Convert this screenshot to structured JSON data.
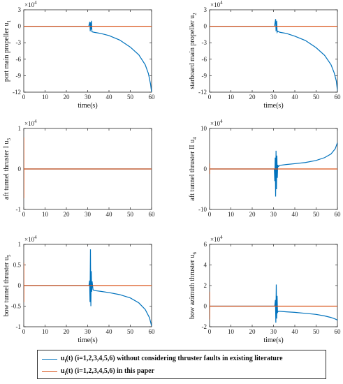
{
  "colors": {
    "literature": "#0072BD",
    "this_paper": "#D95319",
    "axis": "#262626"
  },
  "legend": {
    "items": [
      {
        "label_parts": [
          "u",
          "i",
          "(t) (i=1,2,3,4,5,6) without considering thruster faults in existing literature"
        ],
        "color": "#0072BD"
      },
      {
        "label_parts": [
          "u",
          "i",
          "(t) (i=1,2,3,4,5,6) in this paper"
        ],
        "color": "#D95319"
      }
    ]
  },
  "chart_data": [
    {
      "type": "line",
      "ylabel": "port main propeller u",
      "ylabel_sub": "1",
      "xlabel": "time(s)",
      "exponent_base": "×10",
      "exponent_power": "4",
      "xlim": [
        0,
        60
      ],
      "ylim": [
        -12,
        3
      ],
      "xticks": [
        "0",
        "10",
        "20",
        "30",
        "40",
        "50",
        "60"
      ],
      "yticks": [
        "-12",
        "-9",
        "-6",
        "-3",
        "0",
        "3"
      ],
      "series": [
        {
          "color_key": "literature",
          "x": [
            0,
            30.5,
            31,
            31.2,
            31.4,
            31.6,
            31.8,
            32,
            33,
            36,
            40,
            45,
            50,
            54,
            57,
            58.5,
            59.5,
            60
          ],
          "y": [
            0,
            0,
            0.8,
            -0.9,
            0.7,
            -0.6,
            1,
            -1,
            -1.1,
            -1.3,
            -1.7,
            -2.5,
            -3.8,
            -5.2,
            -7,
            -8.6,
            -10.5,
            -12
          ]
        },
        {
          "color_key": "this_paper",
          "x": [
            0,
            60
          ],
          "y": [
            0,
            0
          ]
        }
      ]
    },
    {
      "type": "line",
      "ylabel": "starboard main propeller u",
      "ylabel_sub": "2",
      "xlabel": "time(s)",
      "exponent_base": "×10",
      "exponent_power": "4",
      "xlim": [
        0,
        60
      ],
      "ylim": [
        -12,
        3
      ],
      "xticks": [
        "0",
        "10",
        "20",
        "30",
        "40",
        "50",
        "60"
      ],
      "yticks": [
        "-12",
        "-9",
        "-6",
        "-3",
        "0",
        "3"
      ],
      "series": [
        {
          "color_key": "literature",
          "x": [
            0,
            30.5,
            31,
            31.2,
            31.5,
            31.7,
            32,
            33,
            36,
            40,
            45,
            50,
            54,
            57,
            58.5,
            59.5,
            60
          ],
          "y": [
            0,
            0,
            1.3,
            -0.9,
            1,
            -1.1,
            -0.9,
            -1.1,
            -1.3,
            -1.8,
            -2.6,
            -3.9,
            -5.3,
            -7,
            -8.5,
            -10,
            -11.7
          ]
        },
        {
          "color_key": "this_paper",
          "x": [
            0,
            60
          ],
          "y": [
            0,
            0
          ]
        }
      ]
    },
    {
      "type": "line",
      "ylabel": "aft tunnel thruster I u",
      "ylabel_sub": "3",
      "xlabel": "",
      "exponent_base": "×10",
      "exponent_power": "4",
      "xlim": [
        0,
        60
      ],
      "ylim": [
        -1,
        1
      ],
      "xticks": [
        "0",
        "10",
        "20",
        "30",
        "40",
        "50",
        "60"
      ],
      "yticks": [
        "-1",
        "0",
        "1"
      ],
      "series": [
        {
          "color_key": "literature",
          "x": [
            0,
            60
          ],
          "y": [
            0,
            0
          ]
        },
        {
          "color_key": "this_paper",
          "x": [
            0,
            0.02,
            0.04,
            0.06,
            0.3,
            60
          ],
          "y": [
            0,
            0.78,
            -0.72,
            0,
            0,
            0
          ]
        }
      ]
    },
    {
      "type": "line",
      "ylabel": "aft tunnel thruster II u",
      "ylabel_sub": "4",
      "xlabel": "",
      "exponent_base": "×10",
      "exponent_power": "4",
      "xlim": [
        0,
        60
      ],
      "ylim": [
        -10,
        10
      ],
      "xticks": [
        "0",
        "10",
        "20",
        "30",
        "40",
        "50",
        "60"
      ],
      "yticks": [
        "-10",
        "0",
        "10"
      ],
      "series": [
        {
          "color_key": "literature",
          "x": [
            0,
            30.4,
            30.6,
            30.8,
            31,
            31.2,
            31.4,
            31.6,
            31.8,
            32,
            32.3,
            33,
            36,
            40,
            45,
            50,
            54,
            57,
            59,
            60
          ],
          "y": [
            0,
            0,
            -3,
            2.8,
            -6.8,
            4.5,
            -5,
            3.3,
            -2.2,
            1,
            0.6,
            0.9,
            1.1,
            1.3,
            1.6,
            2.1,
            2.8,
            3.7,
            5,
            6.5
          ]
        },
        {
          "color_key": "this_paper",
          "x": [
            0,
            0.02,
            0.04,
            0.06,
            0.3,
            60
          ],
          "y": [
            0,
            1.4,
            -1.2,
            0,
            0,
            0
          ]
        }
      ]
    },
    {
      "type": "line",
      "ylabel": "bow tunnel thruster u",
      "ylabel_sub": "5",
      "xlabel": "time(s)",
      "exponent_base": "×10",
      "exponent_power": "4",
      "xlim": [
        0,
        60
      ],
      "ylim": [
        -1,
        1
      ],
      "xticks": [
        "0",
        "10",
        "20",
        "30",
        "40",
        "50",
        "60"
      ],
      "yticks": [
        "-1",
        "-0.5",
        "0",
        "0.5",
        "1"
      ],
      "series": [
        {
          "color_key": "literature",
          "x": [
            0,
            30.6,
            30.9,
            31.1,
            31.3,
            31.5,
            31.7,
            31.9,
            32.1,
            32.5,
            33,
            36,
            40,
            45,
            50,
            54,
            57,
            59,
            60
          ],
          "y": [
            0,
            0,
            0.12,
            -0.4,
            0.88,
            -0.5,
            0.35,
            -0.15,
            0.1,
            -0.1,
            -0.12,
            -0.14,
            -0.17,
            -0.22,
            -0.3,
            -0.42,
            -0.58,
            -0.78,
            -0.98
          ]
        },
        {
          "color_key": "this_paper",
          "x": [
            0,
            0.02,
            0.04,
            0.06,
            0.3,
            60
          ],
          "y": [
            0,
            0.55,
            -0.4,
            0,
            0,
            0
          ]
        }
      ]
    },
    {
      "type": "line",
      "ylabel": "bow azimuth thruster u",
      "ylabel_sub": "6",
      "xlabel": "time(s)",
      "exponent_base": "×10",
      "exponent_power": "4",
      "xlim": [
        0,
        60
      ],
      "ylim": [
        -2,
        6
      ],
      "xticks": [
        "0",
        "10",
        "20",
        "30",
        "40",
        "50",
        "60"
      ],
      "yticks": [
        "-2",
        "0",
        "2",
        "4",
        "6"
      ],
      "series": [
        {
          "color_key": "literature",
          "x": [
            0,
            30.6,
            30.9,
            31.1,
            31.3,
            31.5,
            31.7,
            31.9,
            32.2,
            32.6,
            33,
            36,
            40,
            45,
            50,
            54,
            57,
            59,
            60
          ],
          "y": [
            0,
            0,
            0.6,
            -1.6,
            2.1,
            -1.2,
            1,
            -0.6,
            -0.5,
            -0.5,
            -0.5,
            -0.55,
            -0.6,
            -0.7,
            -0.8,
            -0.95,
            -1.1,
            -1.25,
            -1.35
          ]
        },
        {
          "color_key": "this_paper",
          "x": [
            0,
            0.02,
            0.04,
            0.06,
            0.3,
            60
          ],
          "y": [
            0,
            1.4,
            -1.3,
            0,
            0,
            0
          ]
        }
      ]
    }
  ]
}
